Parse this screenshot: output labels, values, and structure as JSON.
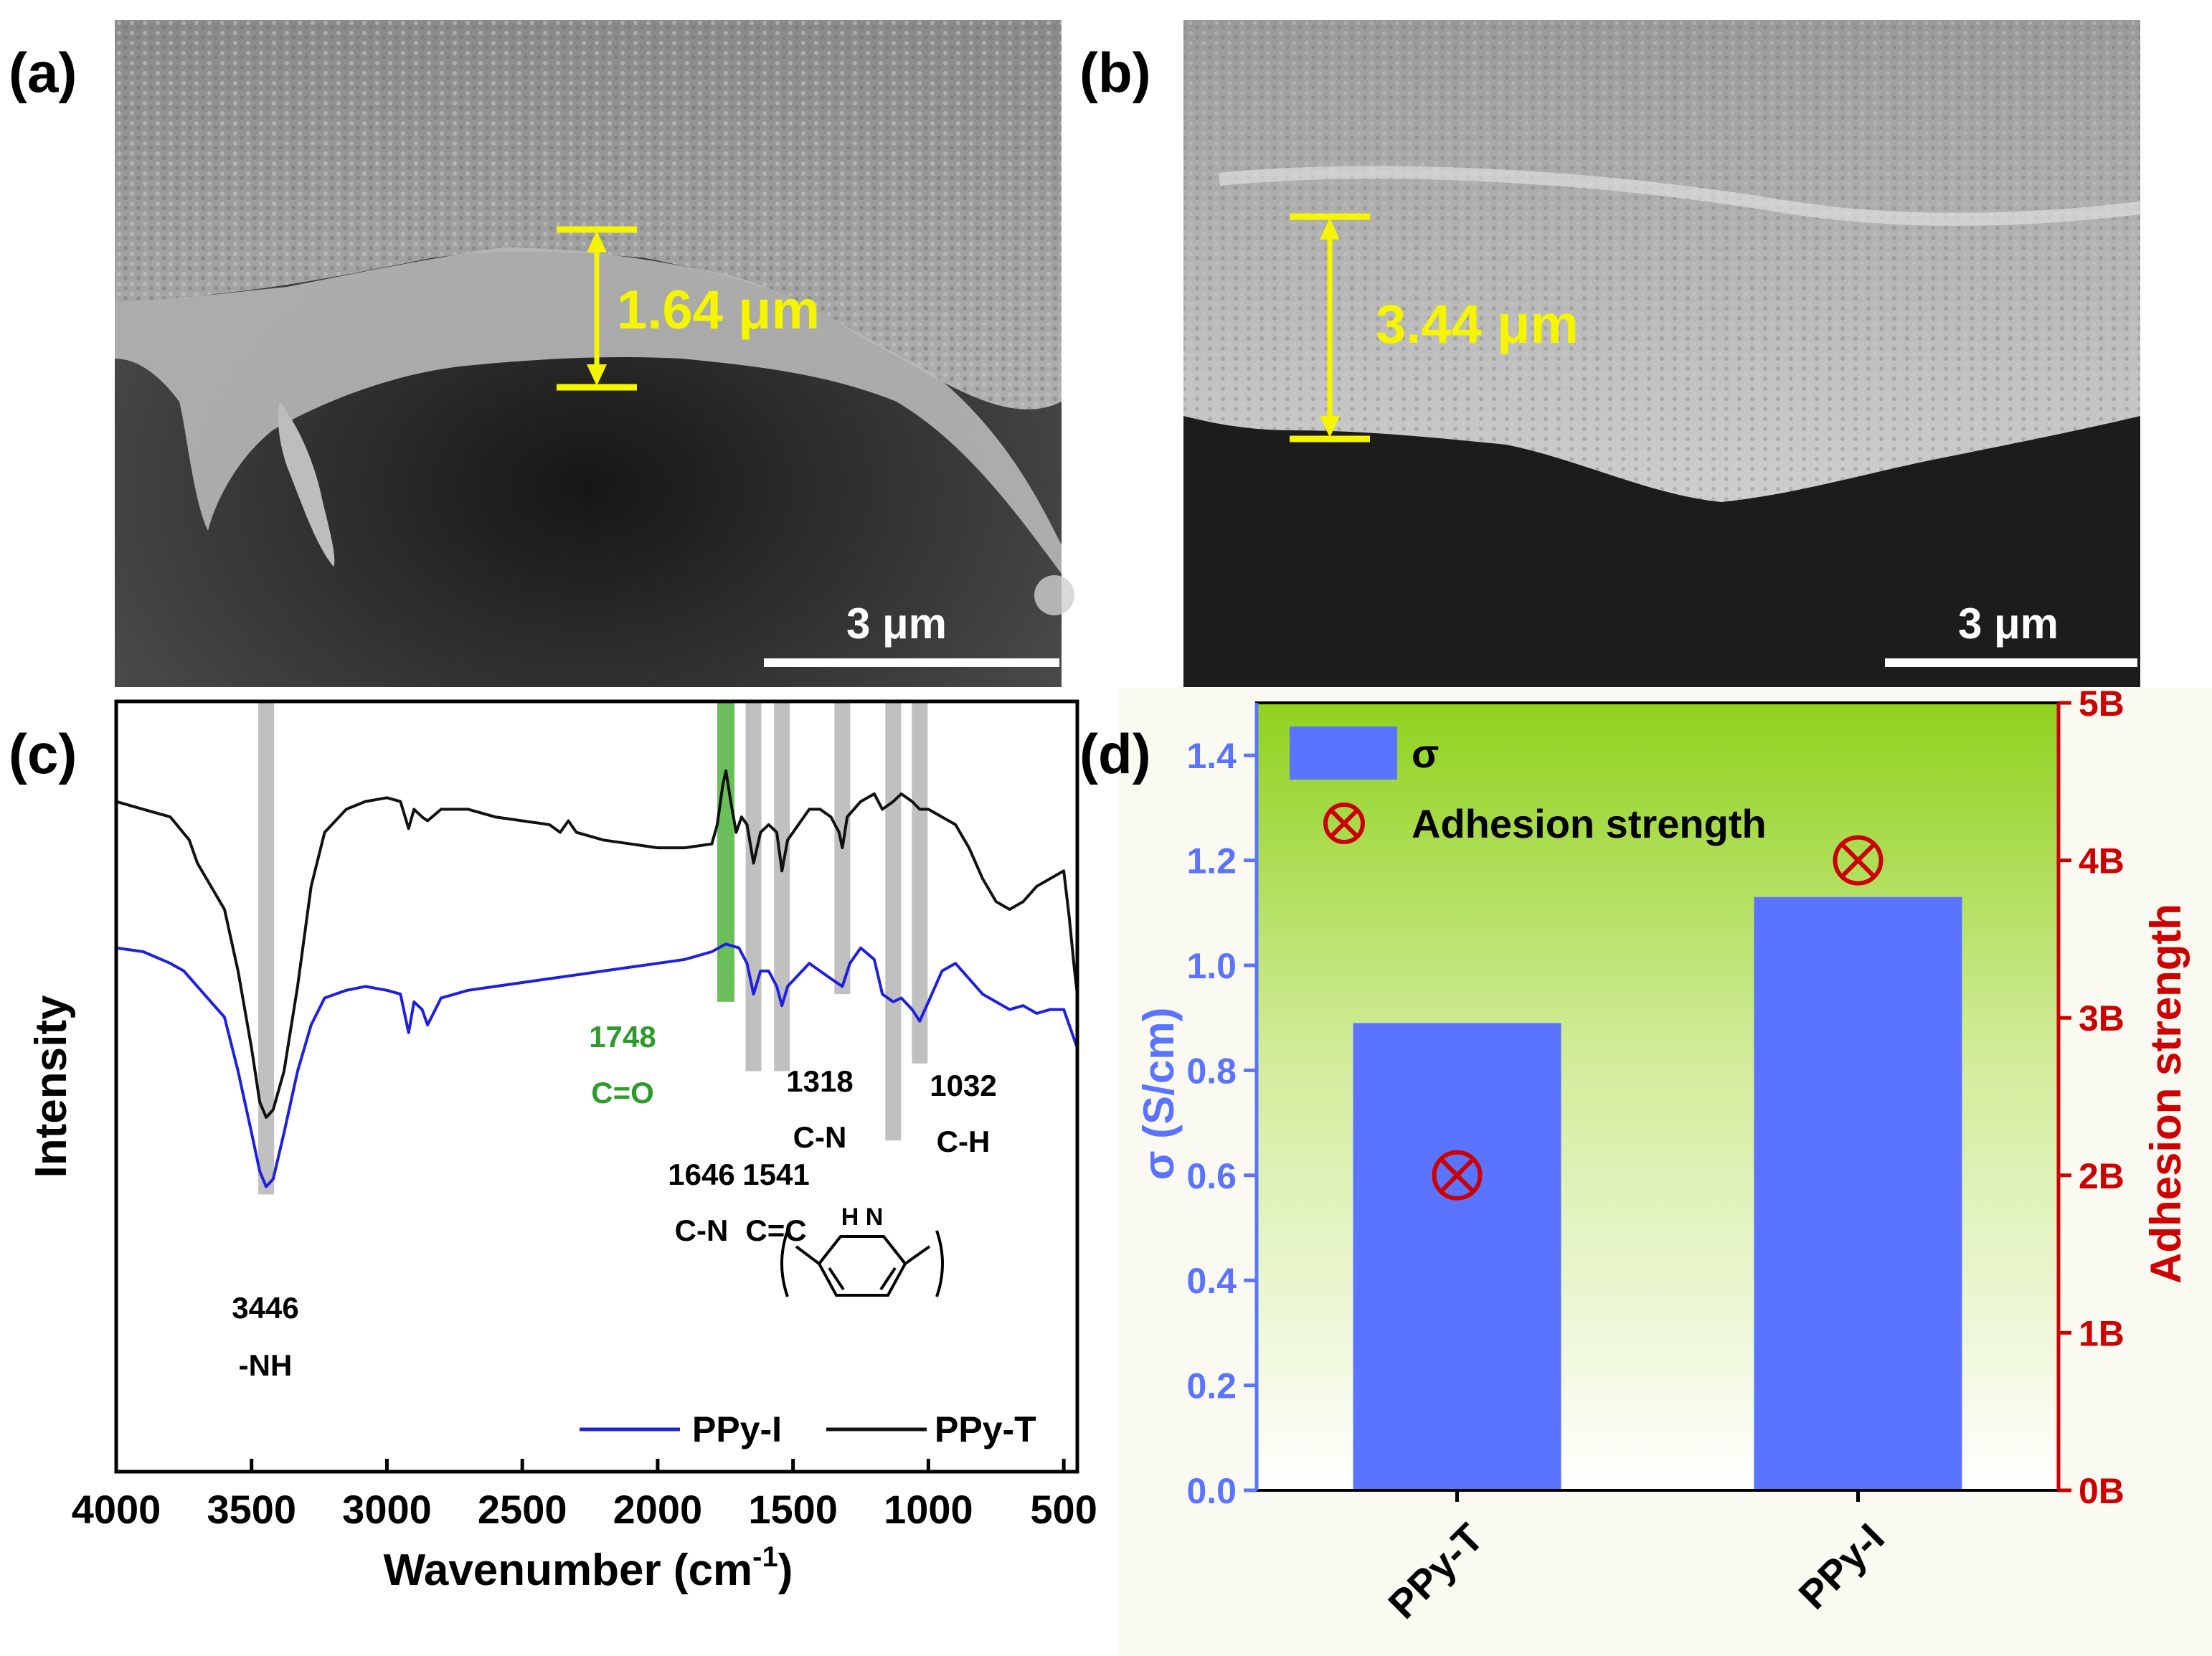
{
  "panels": {
    "a": {
      "label": "(a)",
      "thickness_label": "1.64 μm",
      "scale_bar_label": "3 μm"
    },
    "b": {
      "label": "(b)",
      "thickness_label": "3.44 μm",
      "scale_bar_label": "3 μm"
    },
    "c": {
      "label": "(c)"
    },
    "d": {
      "label": "(d)"
    }
  },
  "colors": {
    "yellow_marker": "#f5f500",
    "ppy_i_line": "#1f1fdf",
    "ppy_t_line": "#111111",
    "gray_band": "#c0c0c0",
    "green_band": "#6abf5a",
    "green_text": "#2e9a2e",
    "bar_blue": "#5b74ff",
    "left_axis_blue": "#5b74ff",
    "right_axis_red": "#cc0000",
    "bg_gradient_top": "#8fd21e",
    "bg_gradient_bottom": "#ffffff"
  },
  "chart_data": [
    {
      "panel": "c",
      "type": "line",
      "xlabel": "Wavenumber (cm",
      "xlabel_sup": "-1",
      "xlabel_close": ")",
      "ylabel": "Intensity",
      "xlim": [
        4000,
        450
      ],
      "x_reversed": true,
      "x_ticks": [
        4000,
        3500,
        3000,
        2500,
        2000,
        1500,
        1000,
        500
      ],
      "y_ticks_shown": false,
      "legend": {
        "placement": "bottom-right",
        "entries": [
          "PPy-I",
          "PPy-T"
        ]
      },
      "series": [
        {
          "name": "PPy-T",
          "color": "#111111",
          "points": [
            [
              4000,
              0.87
            ],
            [
              3900,
              0.86
            ],
            [
              3800,
              0.85
            ],
            [
              3730,
              0.82
            ],
            [
              3700,
              0.79
            ],
            [
              3650,
              0.76
            ],
            [
              3600,
              0.73
            ],
            [
              3550,
              0.65
            ],
            [
              3500,
              0.55
            ],
            [
              3470,
              0.48
            ],
            [
              3446,
              0.46
            ],
            [
              3420,
              0.47
            ],
            [
              3380,
              0.52
            ],
            [
              3330,
              0.63
            ],
            [
              3280,
              0.76
            ],
            [
              3230,
              0.83
            ],
            [
              3150,
              0.86
            ],
            [
              3080,
              0.87
            ],
            [
              3000,
              0.875
            ],
            [
              2950,
              0.87
            ],
            [
              2920,
              0.835
            ],
            [
              2900,
              0.86
            ],
            [
              2870,
              0.85
            ],
            [
              2850,
              0.845
            ],
            [
              2800,
              0.86
            ],
            [
              2700,
              0.86
            ],
            [
              2600,
              0.85
            ],
            [
              2500,
              0.845
            ],
            [
              2400,
              0.84
            ],
            [
              2360,
              0.83
            ],
            [
              2330,
              0.845
            ],
            [
              2300,
              0.83
            ],
            [
              2200,
              0.82
            ],
            [
              2100,
              0.815
            ],
            [
              2000,
              0.81
            ],
            [
              1900,
              0.81
            ],
            [
              1800,
              0.815
            ],
            [
              1780,
              0.84
            ],
            [
              1760,
              0.89
            ],
            [
              1748,
              0.91
            ],
            [
              1730,
              0.87
            ],
            [
              1710,
              0.83
            ],
            [
              1690,
              0.85
            ],
            [
              1670,
              0.84
            ],
            [
              1646,
              0.79
            ],
            [
              1620,
              0.83
            ],
            [
              1590,
              0.84
            ],
            [
              1560,
              0.83
            ],
            [
              1541,
              0.78
            ],
            [
              1520,
              0.82
            ],
            [
              1480,
              0.84
            ],
            [
              1440,
              0.86
            ],
            [
              1400,
              0.86
            ],
            [
              1360,
              0.85
            ],
            [
              1330,
              0.83
            ],
            [
              1318,
              0.81
            ],
            [
              1300,
              0.85
            ],
            [
              1250,
              0.87
            ],
            [
              1200,
              0.88
            ],
            [
              1170,
              0.86
            ],
            [
              1130,
              0.87
            ],
            [
              1100,
              0.88
            ],
            [
              1060,
              0.87
            ],
            [
              1032,
              0.86
            ],
            [
              1000,
              0.86
            ],
            [
              950,
              0.85
            ],
            [
              900,
              0.84
            ],
            [
              850,
              0.81
            ],
            [
              800,
              0.77
            ],
            [
              750,
              0.74
            ],
            [
              700,
              0.73
            ],
            [
              650,
              0.74
            ],
            [
              600,
              0.76
            ],
            [
              550,
              0.77
            ],
            [
              500,
              0.78
            ],
            [
              480,
              0.72
            ],
            [
              460,
              0.65
            ],
            [
              450,
              0.62
            ]
          ]
        },
        {
          "name": "PPy-I",
          "color": "#1f1fdf",
          "points": [
            [
              4000,
              0.68
            ],
            [
              3900,
              0.675
            ],
            [
              3800,
              0.66
            ],
            [
              3750,
              0.65
            ],
            [
              3700,
              0.63
            ],
            [
              3650,
              0.61
            ],
            [
              3600,
              0.59
            ],
            [
              3550,
              0.52
            ],
            [
              3500,
              0.44
            ],
            [
              3470,
              0.39
            ],
            [
              3446,
              0.37
            ],
            [
              3420,
              0.38
            ],
            [
              3380,
              0.44
            ],
            [
              3330,
              0.52
            ],
            [
              3280,
              0.58
            ],
            [
              3230,
              0.615
            ],
            [
              3150,
              0.625
            ],
            [
              3080,
              0.63
            ],
            [
              3000,
              0.625
            ],
            [
              2950,
              0.62
            ],
            [
              2920,
              0.57
            ],
            [
              2900,
              0.61
            ],
            [
              2870,
              0.6
            ],
            [
              2850,
              0.58
            ],
            [
              2800,
              0.615
            ],
            [
              2700,
              0.625
            ],
            [
              2600,
              0.63
            ],
            [
              2500,
              0.635
            ],
            [
              2400,
              0.64
            ],
            [
              2300,
              0.645
            ],
            [
              2200,
              0.65
            ],
            [
              2100,
              0.655
            ],
            [
              2000,
              0.66
            ],
            [
              1900,
              0.665
            ],
            [
              1800,
              0.675
            ],
            [
              1748,
              0.685
            ],
            [
              1700,
              0.68
            ],
            [
              1670,
              0.66
            ],
            [
              1646,
              0.62
            ],
            [
              1620,
              0.65
            ],
            [
              1590,
              0.65
            ],
            [
              1560,
              0.63
            ],
            [
              1541,
              0.605
            ],
            [
              1520,
              0.63
            ],
            [
              1480,
              0.645
            ],
            [
              1440,
              0.66
            ],
            [
              1400,
              0.65
            ],
            [
              1360,
              0.64
            ],
            [
              1318,
              0.63
            ],
            [
              1290,
              0.66
            ],
            [
              1250,
              0.68
            ],
            [
              1200,
              0.665
            ],
            [
              1170,
              0.62
            ],
            [
              1130,
              0.61
            ],
            [
              1100,
              0.615
            ],
            [
              1060,
              0.6
            ],
            [
              1032,
              0.585
            ],
            [
              1000,
              0.61
            ],
            [
              950,
              0.65
            ],
            [
              900,
              0.66
            ],
            [
              850,
              0.64
            ],
            [
              800,
              0.62
            ],
            [
              750,
              0.61
            ],
            [
              700,
              0.6
            ],
            [
              650,
              0.605
            ],
            [
              600,
              0.595
            ],
            [
              550,
              0.6
            ],
            [
              500,
              0.6
            ],
            [
              480,
              0.58
            ],
            [
              460,
              0.56
            ],
            [
              450,
              0.55
            ]
          ]
        }
      ],
      "bands": [
        {
          "wavenumber": 3446,
          "color": "gray",
          "from": 0.36,
          "to": 1.0
        },
        {
          "wavenumber": 1748,
          "color": "green",
          "from": 0.61,
          "to": 1.0
        },
        {
          "wavenumber": 1646,
          "color": "gray",
          "from": 0.52,
          "to": 1.0
        },
        {
          "wavenumber": 1541,
          "color": "gray",
          "from": 0.52,
          "to": 1.0
        },
        {
          "wavenumber": 1318,
          "color": "gray",
          "from": 0.62,
          "to": 1.0
        },
        {
          "wavenumber": 1130,
          "color": "gray",
          "from": 0.43,
          "to": 1.0
        },
        {
          "wavenumber": 1032,
          "color": "gray",
          "from": 0.53,
          "to": 1.0
        }
      ],
      "annotations": [
        {
          "value": "3446",
          "sub": "-NH",
          "at": 3446
        },
        {
          "value": "1748",
          "sub": "C=O",
          "at": 1748,
          "color": "green"
        },
        {
          "value": "1646",
          "sub": "C-N",
          "at": 1646
        },
        {
          "value": "1541",
          "sub": "C=C",
          "at": 1541
        },
        {
          "value": "1318",
          "sub": "C-N",
          "at": 1318
        },
        {
          "value": "1032",
          "sub": "C-H",
          "at": 1032
        }
      ],
      "structure_label": "H N"
    },
    {
      "panel": "d",
      "type": "bar",
      "categories": [
        "PPy-T",
        "PPy-I"
      ],
      "series": [
        {
          "name": "σ",
          "axis": "left",
          "values": [
            0.89,
            1.13
          ],
          "color": "#5b74ff"
        },
        {
          "name": "Adhesion strength",
          "axis": "right",
          "values": [
            2,
            4
          ],
          "marker": "circle-x",
          "color": "#cc0000"
        }
      ],
      "ylabel_left": "σ (S/cm)",
      "ylabel_right": "Adhesion strength",
      "ylim_left": [
        0.0,
        1.5
      ],
      "y_ticks_left": [
        "0.0",
        "0.2",
        "0.4",
        "0.6",
        "0.8",
        "1.0",
        "1.2",
        "1.4"
      ],
      "ylim_right": [
        0,
        5
      ],
      "y_ticks_right": [
        "0B",
        "1B",
        "2B",
        "3B",
        "4B",
        "5B"
      ],
      "legend": {
        "placement": "top-left",
        "entries": [
          "σ",
          "Adhesion strength"
        ]
      },
      "background": "gradient green to white"
    }
  ]
}
